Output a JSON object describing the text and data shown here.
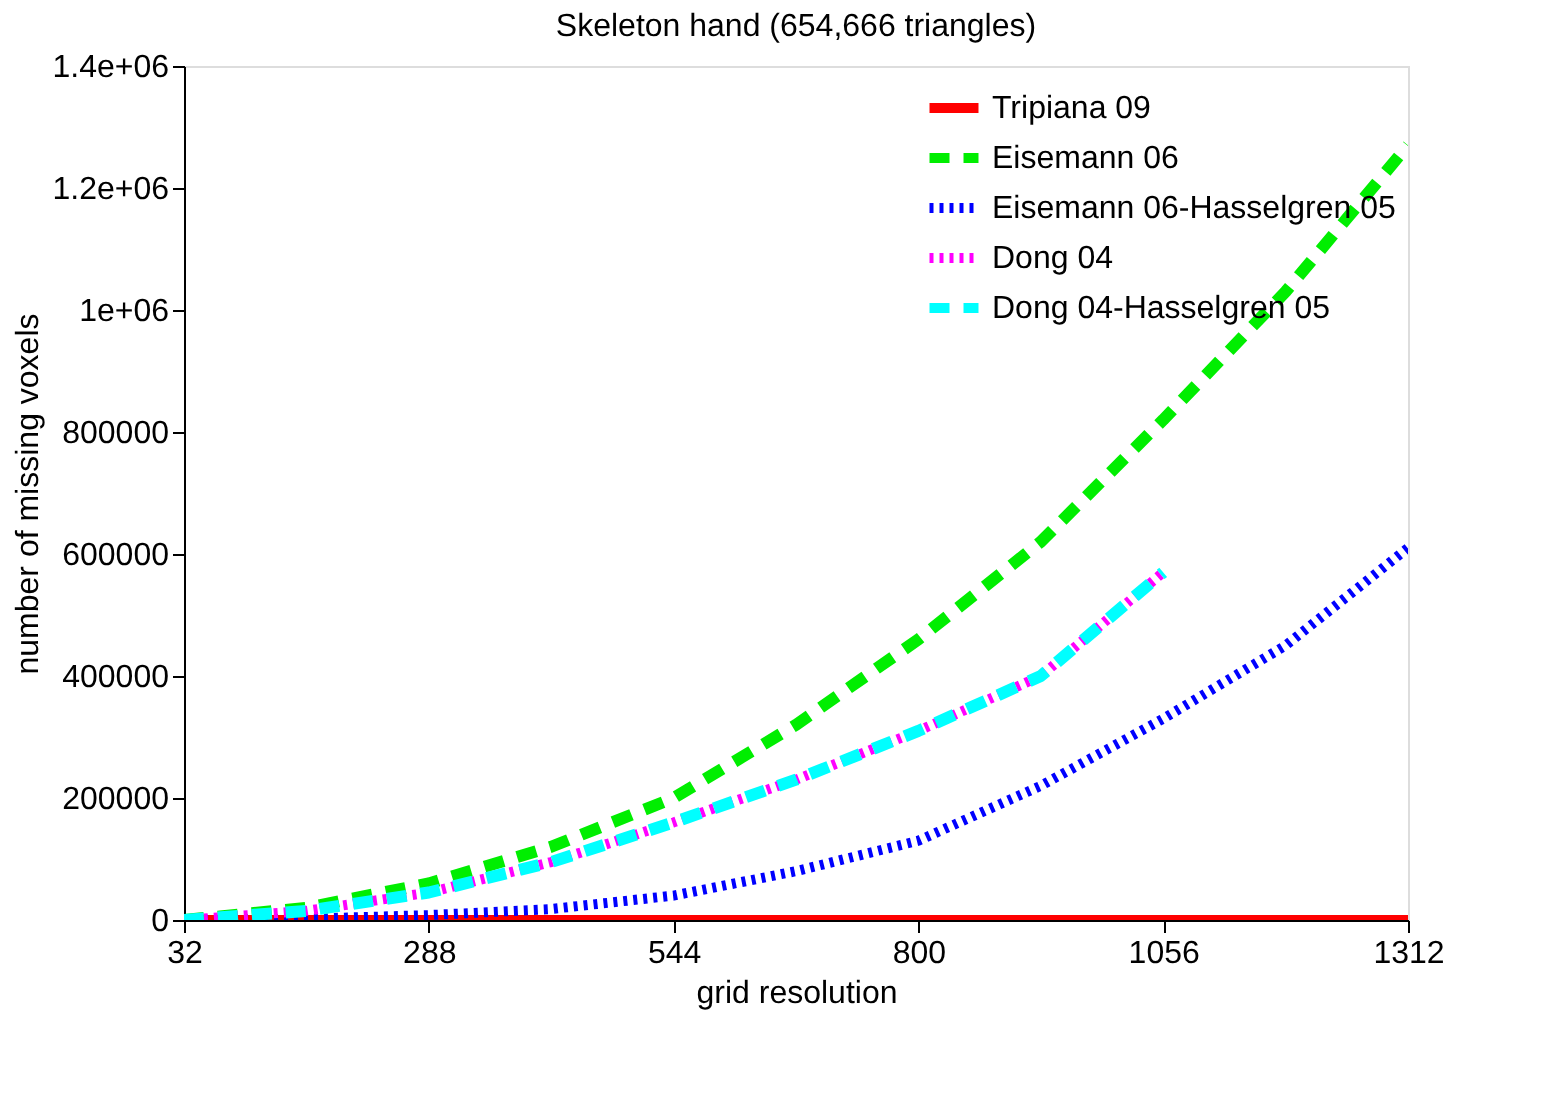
{
  "chart_data": {
    "type": "line",
    "title": "Skeleton hand (654,666 triangles)",
    "xlabel": "grid resolution",
    "ylabel": "number of missing voxels",
    "x": [
      32,
      160,
      288,
      416,
      544,
      672,
      800,
      928,
      1056,
      1184,
      1312
    ],
    "xlim": [
      32,
      1312
    ],
    "xticks": [
      32,
      288,
      544,
      800,
      1056,
      1312
    ],
    "ylim": [
      0,
      1400000
    ],
    "yticks": [
      0,
      200000,
      400000,
      600000,
      800000,
      {
        "value": 1000000,
        "label": "1e+06"
      },
      {
        "value": 1200000,
        "label": "1.2e+06"
      },
      {
        "value": 1400000,
        "label": "1.4e+06"
      }
    ],
    "grid": false,
    "legend": "top right",
    "series": [
      {
        "name": "Tripiana 09",
        "color": "#ff0000",
        "line_style": "solid",
        "values": [
          0,
          0,
          0,
          0,
          0,
          0,
          0,
          0,
          0,
          0,
          0
        ]
      },
      {
        "name": "Eisemann 06",
        "color": "#00ee00",
        "line_style": "dashed",
        "values": [
          0,
          20000,
          60000,
          120000,
          200000,
          320000,
          460000,
          620000,
          820000,
          1030000,
          1270000
        ]
      },
      {
        "name": "Eisemann 06-Hasselgren 05",
        "color": "#0000ff",
        "line_style": "dotted",
        "values": [
          0,
          2000,
          8000,
          18000,
          40000,
          80000,
          130000,
          220000,
          330000,
          450000,
          610000
        ]
      },
      {
        "name": "Dong 04",
        "color": "#ff00ff",
        "line_style": "dotted",
        "values": [
          0,
          15000,
          45000,
          95000,
          160000,
          230000,
          310000,
          400000,
          570000,
          null,
          null
        ]
      },
      {
        "name": "Dong 04-Hasselgren 05",
        "color": "#00ffff",
        "line_style": "dashed",
        "values": [
          0,
          15000,
          45000,
          95000,
          160000,
          230000,
          310000,
          400000,
          570000,
          null,
          null
        ]
      }
    ]
  }
}
